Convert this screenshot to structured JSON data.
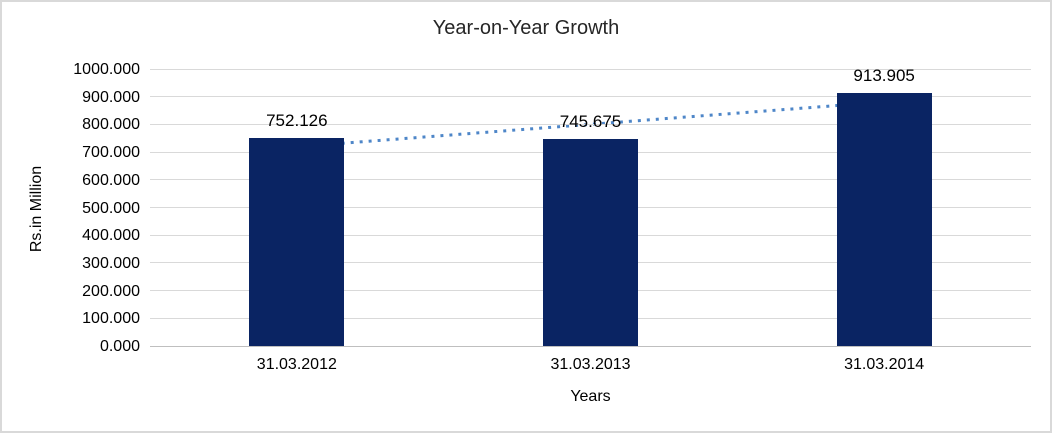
{
  "chart_data": {
    "type": "bar",
    "title": "Year-on-Year Growth",
    "categories": [
      "31.03.2012",
      "31.03.2013",
      "31.03.2014"
    ],
    "values": [
      752.126,
      745.675,
      913.905
    ],
    "data_labels": [
      "752.126",
      "745.675",
      "913.905"
    ],
    "xlabel": "Years",
    "ylabel": "Rs.in Million",
    "ylim": [
      0,
      1000
    ],
    "ytick_step": 100,
    "ytick_labels": [
      "0.000",
      "100.000",
      "200.000",
      "300.000",
      "400.000",
      "500.000",
      "600.000",
      "700.000",
      "800.000",
      "900.000",
      "1000.000"
    ],
    "grid": "horizontal",
    "legend": "none",
    "trendline": {
      "type": "linear",
      "style": "dotted"
    }
  },
  "colors": {
    "bar": "#0a2463",
    "trendline": "#4e86c8",
    "gridline": "#d9d9d9",
    "axis_line": "#bfbfbf",
    "text": "#000000",
    "title_text": "#262626",
    "frame_border": "#d9d9d9",
    "background": "#ffffff"
  }
}
